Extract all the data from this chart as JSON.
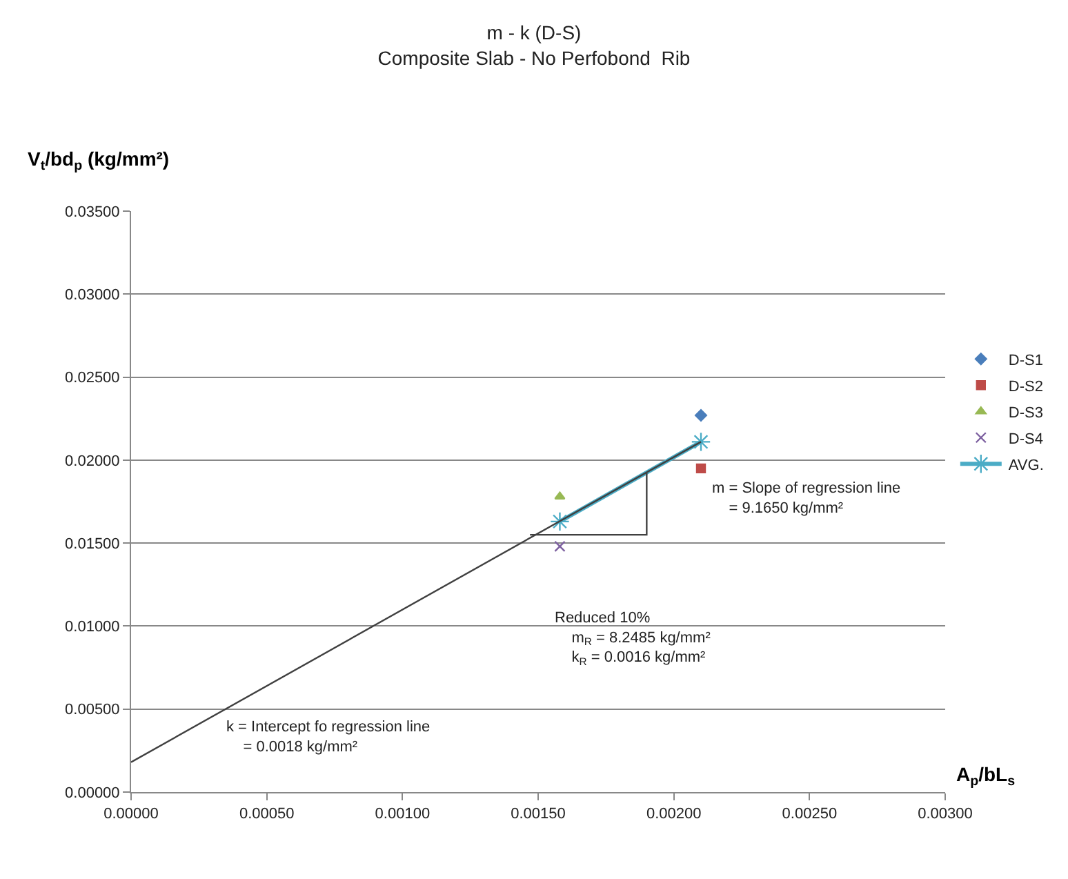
{
  "chart_data": {
    "type": "scatter",
    "title": "m - k (D-S)",
    "subtitle": "Composite Slab - No Perfobond  Rib",
    "xlabel": "A$_{p}$/bL$_{s}$",
    "ylabel": "V$_{t}$/bd$_{p}$ (kg/mm²)",
    "series": [
      {
        "name": "D-S1",
        "color": "#4a7ebb",
        "marker": "diamond",
        "x": [
          0.0021
        ],
        "values": [
          0.0227
        ]
      },
      {
        "name": "D-S2",
        "color": "#be4b48",
        "marker": "square",
        "x": [
          0.0021
        ],
        "values": [
          0.0195
        ]
      },
      {
        "name": "D-S3",
        "color": "#98b954",
        "marker": "triangle",
        "x": [
          0.00158
        ],
        "values": [
          0.0178
        ]
      },
      {
        "name": "D-S4",
        "color": "#7d60a0",
        "marker": "cross",
        "x": [
          0.00158
        ],
        "values": [
          0.0148
        ]
      },
      {
        "name": "AVG.",
        "type": "line",
        "color": "#4bacc6",
        "marker": "cross",
        "x": [
          0.00158,
          0.0021
        ],
        "values": [
          0.0163,
          0.0211
        ]
      },
      {
        "type": "line",
        "color": "#404040",
        "marker": "none",
        "x": [
          0,
          0.0021
        ],
        "values": [
          0.0018,
          0.0211
        ]
      },
      {
        "type": "line",
        "color": "#404040",
        "marker": "none",
        "x": [
          0.00147,
          0.0019,
          0.0019
        ],
        "values": [
          0.0155,
          0.0155,
          0.0192
        ]
      }
    ],
    "xlim": [
      0,
      0.003
    ],
    "xticks": [
      {
        "value": 0,
        "label": "0.00000"
      },
      {
        "value": 0.0005,
        "label": "0.00050"
      },
      {
        "value": 0.001,
        "label": "0.00100"
      },
      {
        "value": 0.0015,
        "label": "0.00150"
      },
      {
        "value": 0.002,
        "label": "0.00200"
      },
      {
        "value": 0.0025,
        "label": "0.00250"
      },
      {
        "value": 0.003,
        "label": "0.00300"
      }
    ],
    "ylim": [
      0,
      0.035
    ],
    "yticks": [
      {
        "value": 0,
        "label": "0.00000"
      },
      {
        "value": 0.005,
        "label": "0.00500"
      },
      {
        "value": 0.01,
        "label": "0.01000"
      },
      {
        "value": 0.015,
        "label": "0.01500"
      },
      {
        "value": 0.02,
        "label": "0.02000"
      },
      {
        "value": 0.025,
        "label": "0.02500"
      },
      {
        "value": 0.03,
        "label": "0.03000"
      },
      {
        "value": 0.035,
        "label": "0.03500"
      }
    ],
    "grid": "y",
    "legend": "right",
    "annotations": [
      "m = Slope of regression line\n    = 9.1650 kg/mm²",
      "Reduced 10%\n    m$_{R}$ = 8.2485 kg/mm²\n    k$_{R}$ = 0.0016 kg/mm²",
      "k = Intercept fo regression line\n    = 0.0018 kg/mm²"
    ]
  }
}
